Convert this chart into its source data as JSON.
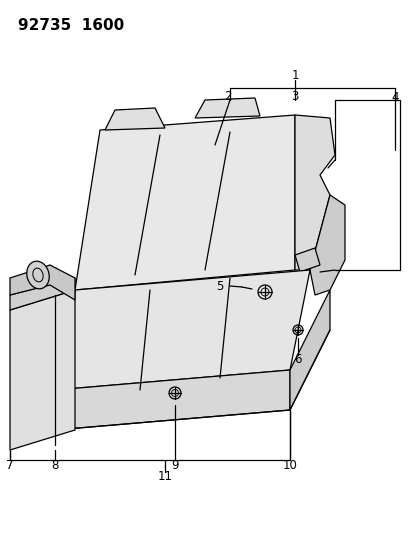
{
  "title": "92735  1600",
  "bg": "#ffffff",
  "lc": "#000000",
  "lw": 0.9,
  "title_fs": 11,
  "label_fs": 8.5,
  "figw": 4.14,
  "figh": 5.33,
  "dpi": 100
}
